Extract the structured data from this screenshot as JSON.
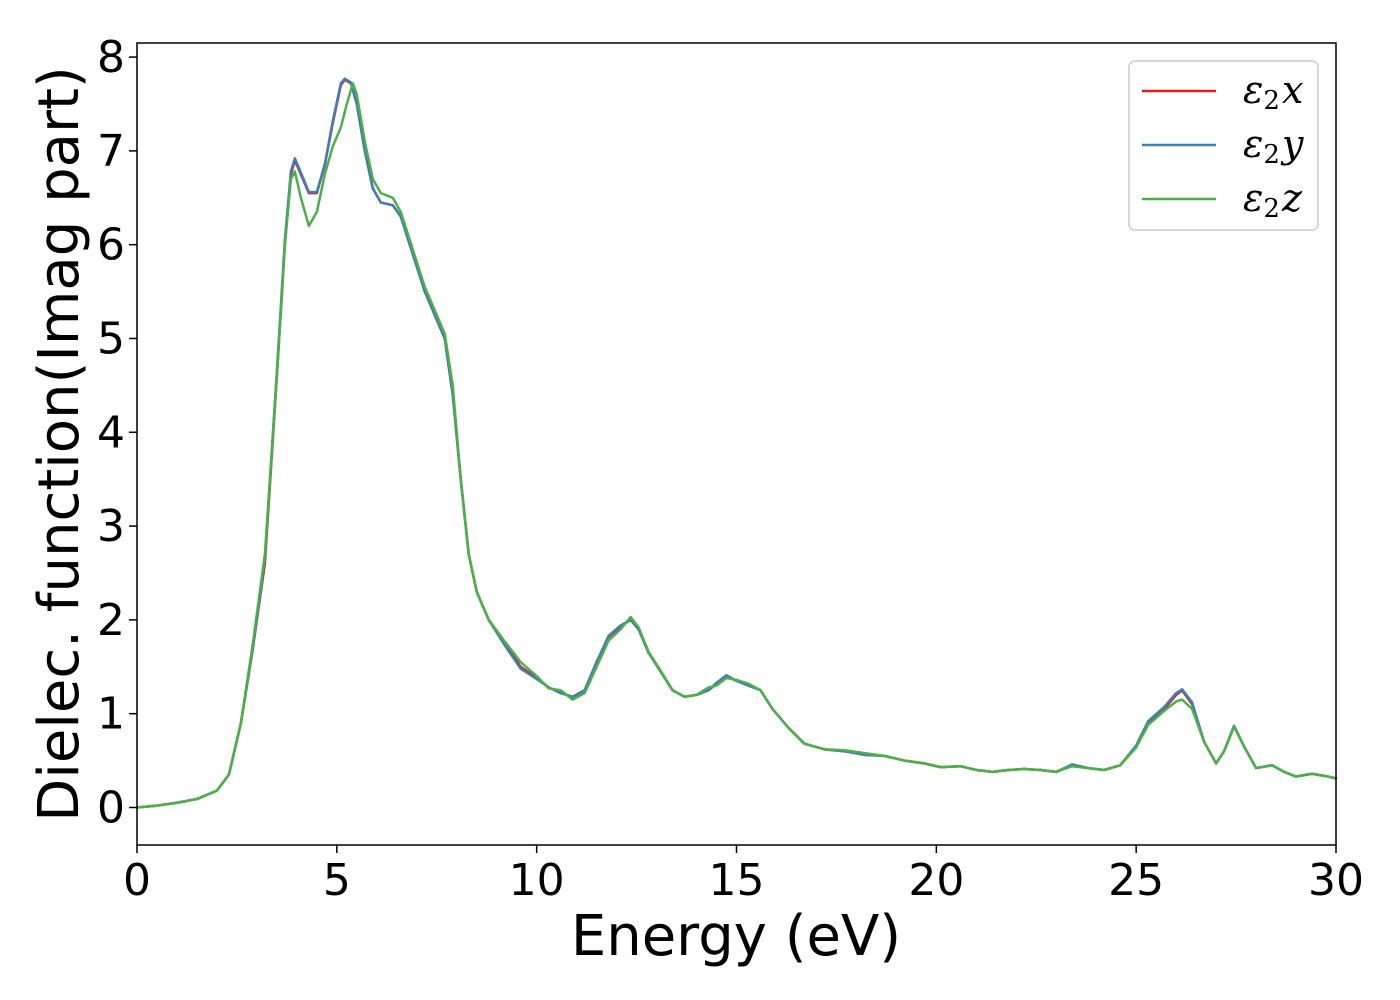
{
  "chart_data": {
    "type": "line",
    "title": "",
    "xlabel": "Energy (eV)",
    "ylabel": "Dielec. function(Imag part)",
    "xlim": [
      0,
      30
    ],
    "ylim": [
      -0.4,
      8.15
    ],
    "xticks": [
      0,
      5,
      10,
      15,
      20,
      25,
      30
    ],
    "yticks": [
      0,
      1,
      2,
      3,
      4,
      5,
      6,
      7,
      8
    ],
    "grid": false,
    "legend_position": "top-right",
    "series": [
      {
        "name": "ε2x",
        "legend_main": "ε",
        "legend_sub": "2",
        "legend_var": "x",
        "color": "#e41a1c",
        "points": [
          [
            0,
            0.0
          ],
          [
            0.5,
            0.02
          ],
          [
            1.0,
            0.05
          ],
          [
            1.5,
            0.09
          ],
          [
            2.0,
            0.18
          ],
          [
            2.3,
            0.35
          ],
          [
            2.6,
            0.9
          ],
          [
            2.9,
            1.7
          ],
          [
            3.2,
            2.6
          ],
          [
            3.5,
            4.6
          ],
          [
            3.7,
            6.0
          ],
          [
            3.85,
            6.75
          ],
          [
            3.95,
            6.9
          ],
          [
            4.1,
            6.75
          ],
          [
            4.3,
            6.55
          ],
          [
            4.5,
            6.55
          ],
          [
            4.7,
            6.85
          ],
          [
            4.9,
            7.3
          ],
          [
            5.1,
            7.7
          ],
          [
            5.2,
            7.76
          ],
          [
            5.35,
            7.72
          ],
          [
            5.5,
            7.5
          ],
          [
            5.7,
            7.0
          ],
          [
            5.9,
            6.6
          ],
          [
            6.1,
            6.45
          ],
          [
            6.4,
            6.42
          ],
          [
            6.6,
            6.3
          ],
          [
            6.9,
            5.9
          ],
          [
            7.2,
            5.5
          ],
          [
            7.5,
            5.2
          ],
          [
            7.7,
            5.0
          ],
          [
            7.9,
            4.4
          ],
          [
            8.1,
            3.5
          ],
          [
            8.3,
            2.7
          ],
          [
            8.5,
            2.3
          ],
          [
            8.8,
            2.0
          ],
          [
            9.2,
            1.75
          ],
          [
            9.6,
            1.5
          ],
          [
            10.0,
            1.38
          ],
          [
            10.3,
            1.28
          ],
          [
            10.6,
            1.22
          ],
          [
            10.9,
            1.18
          ],
          [
            11.2,
            1.25
          ],
          [
            11.5,
            1.55
          ],
          [
            11.8,
            1.82
          ],
          [
            12.1,
            1.93
          ],
          [
            12.35,
            2.0
          ],
          [
            12.55,
            1.9
          ],
          [
            12.8,
            1.65
          ],
          [
            13.1,
            1.45
          ],
          [
            13.4,
            1.25
          ],
          [
            13.7,
            1.18
          ],
          [
            14.0,
            1.2
          ],
          [
            14.3,
            1.25
          ],
          [
            14.5,
            1.32
          ],
          [
            14.75,
            1.4
          ],
          [
            15.0,
            1.35
          ],
          [
            15.3,
            1.3
          ],
          [
            15.6,
            1.25
          ],
          [
            15.9,
            1.05
          ],
          [
            16.3,
            0.85
          ],
          [
            16.7,
            0.68
          ],
          [
            17.2,
            0.62
          ],
          [
            17.7,
            0.6
          ],
          [
            18.2,
            0.57
          ],
          [
            18.7,
            0.55
          ],
          [
            19.2,
            0.5
          ],
          [
            19.7,
            0.47
          ],
          [
            20.1,
            0.43
          ],
          [
            20.6,
            0.44
          ],
          [
            21.0,
            0.4
          ],
          [
            21.4,
            0.38
          ],
          [
            21.8,
            0.4
          ],
          [
            22.2,
            0.41
          ],
          [
            22.6,
            0.4
          ],
          [
            23.0,
            0.38
          ],
          [
            23.4,
            0.45
          ],
          [
            23.8,
            0.42
          ],
          [
            24.2,
            0.4
          ],
          [
            24.6,
            0.45
          ],
          [
            25.0,
            0.65
          ],
          [
            25.3,
            0.9
          ],
          [
            25.7,
            1.05
          ],
          [
            26.0,
            1.2
          ],
          [
            26.15,
            1.25
          ],
          [
            26.4,
            1.1
          ],
          [
            26.7,
            0.7
          ],
          [
            27.0,
            0.47
          ],
          [
            27.2,
            0.6
          ],
          [
            27.45,
            0.87
          ],
          [
            27.7,
            0.65
          ],
          [
            28.0,
            0.42
          ],
          [
            28.4,
            0.45
          ],
          [
            28.7,
            0.38
          ],
          [
            29.0,
            0.33
          ],
          [
            29.4,
            0.36
          ],
          [
            29.8,
            0.33
          ],
          [
            30.0,
            0.31
          ]
        ]
      },
      {
        "name": "ε2y",
        "legend_main": "ε",
        "legend_sub": "2",
        "legend_var": "y",
        "color": "#3f7fb5",
        "points": [
          [
            0,
            0.0
          ],
          [
            0.5,
            0.02
          ],
          [
            1.0,
            0.05
          ],
          [
            1.5,
            0.09
          ],
          [
            2.0,
            0.18
          ],
          [
            2.3,
            0.35
          ],
          [
            2.6,
            0.9
          ],
          [
            2.9,
            1.7
          ],
          [
            3.2,
            2.65
          ],
          [
            3.5,
            4.65
          ],
          [
            3.7,
            6.05
          ],
          [
            3.85,
            6.78
          ],
          [
            3.95,
            6.92
          ],
          [
            4.1,
            6.77
          ],
          [
            4.3,
            6.56
          ],
          [
            4.5,
            6.56
          ],
          [
            4.7,
            6.86
          ],
          [
            4.9,
            7.32
          ],
          [
            5.1,
            7.72
          ],
          [
            5.2,
            7.77
          ],
          [
            5.35,
            7.73
          ],
          [
            5.5,
            7.5
          ],
          [
            5.7,
            7.0
          ],
          [
            5.9,
            6.6
          ],
          [
            6.1,
            6.45
          ],
          [
            6.4,
            6.42
          ],
          [
            6.6,
            6.3
          ],
          [
            6.9,
            5.9
          ],
          [
            7.2,
            5.5
          ],
          [
            7.5,
            5.2
          ],
          [
            7.7,
            5.0
          ],
          [
            7.9,
            4.4
          ],
          [
            8.1,
            3.5
          ],
          [
            8.3,
            2.7
          ],
          [
            8.5,
            2.3
          ],
          [
            8.8,
            2.0
          ],
          [
            9.2,
            1.73
          ],
          [
            9.6,
            1.48
          ],
          [
            10.0,
            1.37
          ],
          [
            10.3,
            1.28
          ],
          [
            10.6,
            1.22
          ],
          [
            10.9,
            1.18
          ],
          [
            11.2,
            1.25
          ],
          [
            11.5,
            1.55
          ],
          [
            11.8,
            1.83
          ],
          [
            12.1,
            1.94
          ],
          [
            12.35,
            2.0
          ],
          [
            12.55,
            1.9
          ],
          [
            12.8,
            1.65
          ],
          [
            13.1,
            1.45
          ],
          [
            13.4,
            1.25
          ],
          [
            13.7,
            1.18
          ],
          [
            14.0,
            1.2
          ],
          [
            14.3,
            1.25
          ],
          [
            14.5,
            1.33
          ],
          [
            14.75,
            1.41
          ],
          [
            15.0,
            1.35
          ],
          [
            15.3,
            1.3
          ],
          [
            15.6,
            1.25
          ],
          [
            15.9,
            1.05
          ],
          [
            16.3,
            0.85
          ],
          [
            16.7,
            0.68
          ],
          [
            17.2,
            0.62
          ],
          [
            17.7,
            0.6
          ],
          [
            18.2,
            0.56
          ],
          [
            18.7,
            0.55
          ],
          [
            19.2,
            0.5
          ],
          [
            19.7,
            0.47
          ],
          [
            20.1,
            0.43
          ],
          [
            20.6,
            0.44
          ],
          [
            21.0,
            0.4
          ],
          [
            21.4,
            0.38
          ],
          [
            21.8,
            0.4
          ],
          [
            22.2,
            0.41
          ],
          [
            22.6,
            0.4
          ],
          [
            23.0,
            0.38
          ],
          [
            23.4,
            0.46
          ],
          [
            23.8,
            0.42
          ],
          [
            24.2,
            0.4
          ],
          [
            24.6,
            0.45
          ],
          [
            25.0,
            0.66
          ],
          [
            25.3,
            0.92
          ],
          [
            25.7,
            1.07
          ],
          [
            26.0,
            1.22
          ],
          [
            26.15,
            1.26
          ],
          [
            26.4,
            1.12
          ],
          [
            26.7,
            0.7
          ],
          [
            27.0,
            0.47
          ],
          [
            27.2,
            0.6
          ],
          [
            27.45,
            0.87
          ],
          [
            27.7,
            0.65
          ],
          [
            28.0,
            0.42
          ],
          [
            28.4,
            0.45
          ],
          [
            28.7,
            0.38
          ],
          [
            29.0,
            0.33
          ],
          [
            29.4,
            0.36
          ],
          [
            29.8,
            0.33
          ],
          [
            30.0,
            0.31
          ]
        ]
      },
      {
        "name": "ε2z",
        "legend_main": "ε",
        "legend_sub": "2",
        "legend_var": "z",
        "color": "#4daf4a",
        "points": [
          [
            0,
            0.0
          ],
          [
            0.5,
            0.02
          ],
          [
            1.0,
            0.05
          ],
          [
            1.5,
            0.09
          ],
          [
            2.0,
            0.18
          ],
          [
            2.3,
            0.35
          ],
          [
            2.6,
            0.9
          ],
          [
            2.9,
            1.75
          ],
          [
            3.2,
            2.7
          ],
          [
            3.5,
            4.6
          ],
          [
            3.7,
            6.0
          ],
          [
            3.85,
            6.7
          ],
          [
            3.95,
            6.78
          ],
          [
            4.1,
            6.5
          ],
          [
            4.3,
            6.2
          ],
          [
            4.5,
            6.35
          ],
          [
            4.7,
            6.75
          ],
          [
            4.9,
            7.05
          ],
          [
            5.1,
            7.25
          ],
          [
            5.25,
            7.5
          ],
          [
            5.4,
            7.72
          ],
          [
            5.5,
            7.6
          ],
          [
            5.7,
            7.1
          ],
          [
            5.9,
            6.7
          ],
          [
            6.1,
            6.55
          ],
          [
            6.4,
            6.5
          ],
          [
            6.6,
            6.35
          ],
          [
            6.9,
            5.95
          ],
          [
            7.2,
            5.55
          ],
          [
            7.5,
            5.25
          ],
          [
            7.7,
            5.05
          ],
          [
            7.9,
            4.5
          ],
          [
            8.1,
            3.5
          ],
          [
            8.3,
            2.7
          ],
          [
            8.5,
            2.3
          ],
          [
            8.8,
            2.0
          ],
          [
            9.2,
            1.77
          ],
          [
            9.6,
            1.55
          ],
          [
            10.0,
            1.4
          ],
          [
            10.3,
            1.27
          ],
          [
            10.6,
            1.25
          ],
          [
            10.9,
            1.15
          ],
          [
            11.2,
            1.22
          ],
          [
            11.5,
            1.5
          ],
          [
            11.8,
            1.78
          ],
          [
            12.1,
            1.9
          ],
          [
            12.35,
            2.03
          ],
          [
            12.55,
            1.92
          ],
          [
            12.8,
            1.66
          ],
          [
            13.1,
            1.46
          ],
          [
            13.4,
            1.25
          ],
          [
            13.7,
            1.18
          ],
          [
            14.0,
            1.2
          ],
          [
            14.3,
            1.28
          ],
          [
            14.5,
            1.3
          ],
          [
            14.75,
            1.38
          ],
          [
            15.0,
            1.36
          ],
          [
            15.3,
            1.32
          ],
          [
            15.6,
            1.25
          ],
          [
            15.9,
            1.05
          ],
          [
            16.3,
            0.85
          ],
          [
            16.7,
            0.68
          ],
          [
            17.2,
            0.62
          ],
          [
            17.7,
            0.61
          ],
          [
            18.2,
            0.58
          ],
          [
            18.7,
            0.55
          ],
          [
            19.2,
            0.5
          ],
          [
            19.7,
            0.47
          ],
          [
            20.1,
            0.43
          ],
          [
            20.6,
            0.44
          ],
          [
            21.0,
            0.4
          ],
          [
            21.4,
            0.38
          ],
          [
            21.8,
            0.4
          ],
          [
            22.2,
            0.41
          ],
          [
            22.6,
            0.4
          ],
          [
            23.0,
            0.38
          ],
          [
            23.4,
            0.44
          ],
          [
            23.8,
            0.42
          ],
          [
            24.2,
            0.4
          ],
          [
            24.6,
            0.45
          ],
          [
            25.0,
            0.64
          ],
          [
            25.3,
            0.88
          ],
          [
            25.7,
            1.03
          ],
          [
            26.0,
            1.13
          ],
          [
            26.15,
            1.15
          ],
          [
            26.4,
            1.05
          ],
          [
            26.7,
            0.7
          ],
          [
            27.0,
            0.47
          ],
          [
            27.2,
            0.6
          ],
          [
            27.45,
            0.86
          ],
          [
            27.7,
            0.65
          ],
          [
            28.0,
            0.42
          ],
          [
            28.4,
            0.45
          ],
          [
            28.7,
            0.38
          ],
          [
            29.0,
            0.33
          ],
          [
            29.4,
            0.36
          ],
          [
            29.8,
            0.33
          ],
          [
            30.0,
            0.31
          ]
        ]
      }
    ]
  }
}
